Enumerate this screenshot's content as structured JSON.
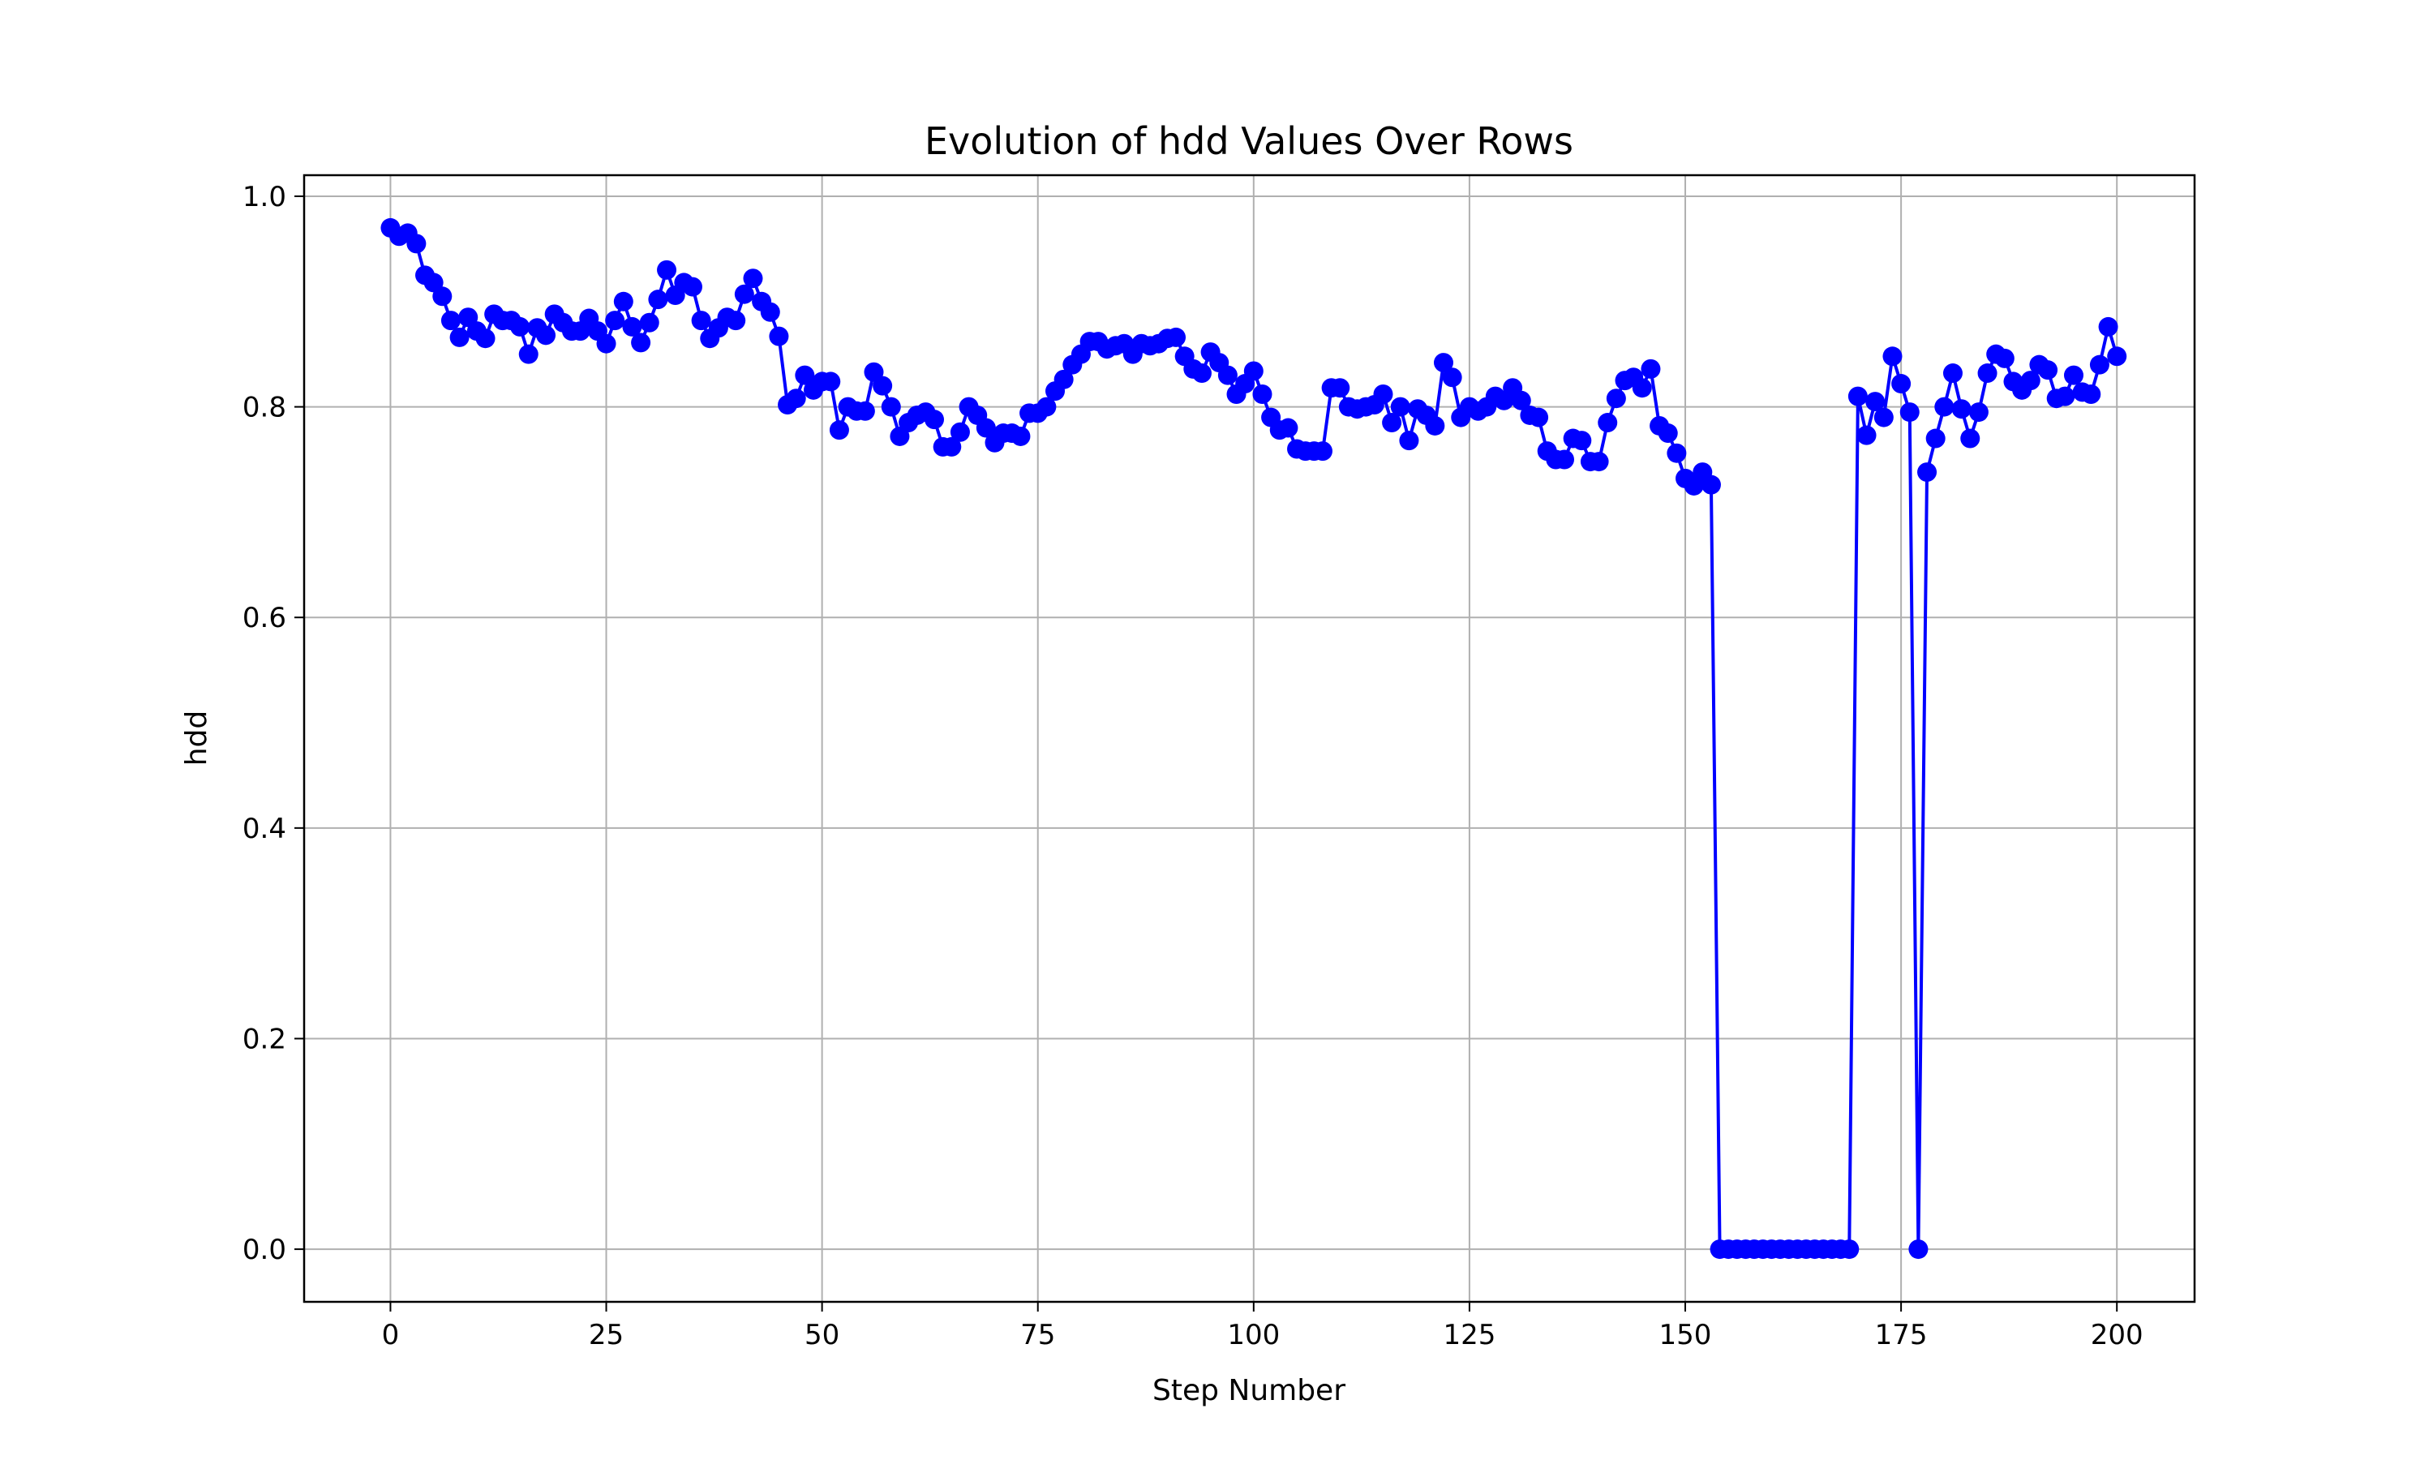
{
  "chart_data": {
    "type": "line",
    "title": "Evolution of hdd Values Over Rows",
    "xlabel": "Step Number",
    "ylabel": "hdd",
    "xlim": [
      -10,
      209
    ],
    "ylim": [
      -0.05,
      1.02
    ],
    "xticks": [
      0,
      25,
      50,
      75,
      100,
      125,
      150,
      175,
      200
    ],
    "yticks": [
      0.0,
      0.2,
      0.4,
      0.6,
      0.8,
      1.0
    ],
    "xtick_labels": [
      "0",
      "25",
      "50",
      "75",
      "100",
      "125",
      "150",
      "175",
      "200"
    ],
    "ytick_labels": [
      "0.0",
      "0.2",
      "0.4",
      "0.6",
      "0.8",
      "1.0"
    ],
    "grid": true,
    "line_color": "#0000ff",
    "marker": "circle",
    "series": [
      {
        "values": [
          0.97,
          0.962,
          0.965,
          0.955,
          0.925,
          0.918,
          0.905,
          0.882,
          0.866,
          0.885,
          0.872,
          0.865,
          0.888,
          0.882,
          0.882,
          0.876,
          0.85,
          0.875,
          0.868,
          0.888,
          0.88,
          0.872,
          0.872,
          0.884,
          0.872,
          0.86,
          0.882,
          0.9,
          0.876,
          0.861,
          0.88,
          0.902,
          0.93,
          0.906,
          0.918,
          0.914,
          0.882,
          0.865,
          0.875,
          0.885,
          0.882,
          0.907,
          0.922,
          0.9,
          0.89,
          0.867,
          0.802,
          0.808,
          0.83,
          0.816,
          0.824,
          0.824,
          0.778,
          0.8,
          0.796,
          0.796,
          0.833,
          0.82,
          0.8,
          0.772,
          0.785,
          0.792,
          0.795,
          0.788,
          0.762,
          0.762,
          0.776,
          0.8,
          0.792,
          0.78,
          0.766,
          0.775,
          0.775,
          0.772,
          0.794,
          0.794,
          0.8,
          0.815,
          0.826,
          0.84,
          0.85,
          0.862,
          0.862,
          0.855,
          0.858,
          0.86,
          0.85,
          0.86,
          0.858,
          0.86,
          0.865,
          0.866,
          0.848,
          0.836,
          0.832,
          0.852,
          0.842,
          0.83,
          0.812,
          0.822,
          0.834,
          0.812,
          0.79,
          0.778,
          0.78,
          0.76,
          0.758,
          0.758,
          0.758,
          0.818,
          0.818,
          0.8,
          0.798,
          0.8,
          0.802,
          0.812,
          0.785,
          0.8,
          0.768,
          0.798,
          0.792,
          0.782,
          0.842,
          0.828,
          0.79,
          0.8,
          0.796,
          0.8,
          0.81,
          0.806,
          0.818,
          0.806,
          0.792,
          0.79,
          0.758,
          0.75,
          0.75,
          0.77,
          0.768,
          0.748,
          0.748,
          0.785,
          0.808,
          0.825,
          0.828,
          0.818,
          0.836,
          0.782,
          0.775,
          0.756,
          0.732,
          0.725,
          0.738,
          0.726,
          0.0,
          0.0,
          0.0,
          0.0,
          0.0,
          0.0,
          0.0,
          0.0,
          0.0,
          0.0,
          0.0,
          0.0,
          0.0,
          0.0,
          0.0,
          0.0,
          0.81,
          0.773,
          0.805,
          0.79,
          0.848,
          0.822,
          0.795,
          0.0,
          0.738,
          0.77,
          0.8,
          0.832,
          0.798,
          0.77,
          0.795,
          0.832,
          0.85,
          0.846,
          0.824,
          0.816,
          0.825,
          0.84,
          0.835,
          0.808,
          0.81,
          0.83,
          0.814,
          0.812,
          0.84,
          0.876,
          0.848
        ]
      }
    ]
  }
}
